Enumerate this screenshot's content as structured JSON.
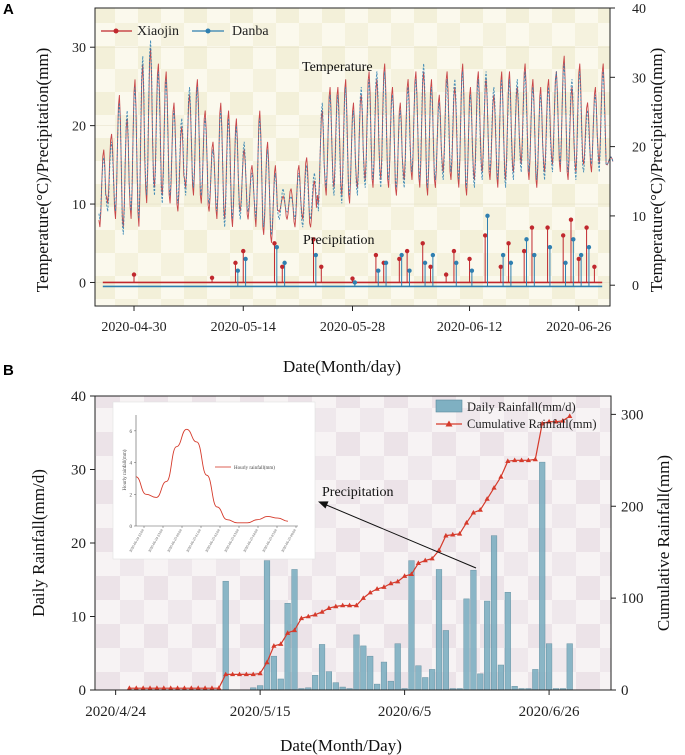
{
  "chart_data": [
    {
      "panel_label": "A",
      "type": "line",
      "title": "",
      "xlabel": "Date(Month/day)",
      "ylabel_left": "Temperature(°C)/Precipitation(mm)",
      "ylabel_right": "Temperature(°C)/Precipitation(mm)",
      "x_start": "2020-04-25",
      "x_end": "2020-06-30",
      "xtick_labels": [
        {
          "label": "2020-04-30",
          "day": 5
        },
        {
          "label": "2020-05-14",
          "day": 19
        },
        {
          "label": "2020-05-28",
          "day": 33
        },
        {
          "label": "2020-06-12",
          "day": 48
        },
        {
          "label": "2020-06-26",
          "day": 62
        }
      ],
      "ylim_left": [
        -3,
        35
      ],
      "yticks_left": [
        "0",
        "10",
        "20",
        "30"
      ],
      "ylim_right": [
        -3,
        40
      ],
      "yticks_right": [
        "0",
        "10",
        "20",
        "30",
        "40"
      ],
      "annotations": [
        "Temperature",
        "Precipitation"
      ],
      "legend_position": "top-left",
      "colors": {
        "Xiaojin": "#c0282e",
        "Danba": "#2f7fb0"
      },
      "series": [
        {
          "name": "Xiaojin",
          "quantity": "temperature",
          "daily_max": [
            17,
            19,
            24,
            21,
            26,
            28,
            30,
            28,
            27,
            23,
            20,
            24,
            26,
            22,
            18,
            23,
            22,
            21,
            17,
            15,
            22,
            18,
            15,
            11,
            12,
            15,
            16,
            13,
            22,
            25,
            25,
            26,
            23,
            24,
            27,
            26,
            28,
            25,
            23,
            26,
            27,
            27,
            26,
            24,
            27,
            25,
            28,
            25,
            27,
            26,
            24,
            27,
            27,
            25,
            28,
            26,
            25,
            26,
            27,
            29,
            25,
            28,
            23,
            25,
            28,
            16
          ],
          "daily_min": [
            7,
            10,
            8,
            7,
            8,
            7,
            10,
            12,
            11,
            10,
            9,
            12,
            11,
            10,
            9,
            8,
            8,
            7,
            9,
            8,
            7,
            6,
            5,
            9,
            8,
            7,
            8,
            7,
            10,
            11,
            12,
            11,
            10,
            12,
            13,
            12,
            13,
            12,
            11,
            13,
            13,
            12,
            11,
            12,
            14,
            13,
            12,
            11,
            13,
            14,
            13,
            12,
            13,
            14,
            15,
            13,
            12,
            14,
            15,
            14,
            13,
            14,
            15,
            14,
            15,
            15
          ]
        },
        {
          "name": "Danba",
          "quantity": "temperature",
          "daily_max": [
            16,
            18,
            23,
            22,
            25,
            29,
            31,
            27,
            26,
            22,
            21,
            25,
            25,
            21,
            17,
            22,
            21,
            20,
            18,
            14,
            21,
            17,
            14,
            12,
            11,
            14,
            15,
            14,
            23,
            24,
            24,
            25,
            22,
            25,
            26,
            27,
            27,
            24,
            22,
            25,
            26,
            28,
            25,
            23,
            26,
            26,
            27,
            24,
            26,
            27,
            25,
            26,
            26,
            26,
            27,
            25,
            24,
            25,
            27,
            28,
            26,
            27,
            22,
            24,
            27,
            16
          ],
          "daily_min": [
            8,
            9,
            9,
            6,
            9,
            8,
            11,
            11,
            10,
            11,
            10,
            11,
            12,
            11,
            10,
            9,
            7,
            8,
            8,
            9,
            8,
            7,
            6,
            8,
            9,
            8,
            7,
            8,
            9,
            12,
            11,
            10,
            11,
            11,
            12,
            13,
            12,
            13,
            12,
            12,
            14,
            13,
            12,
            13,
            13,
            14,
            13,
            12,
            12,
            13,
            14,
            13,
            12,
            13,
            14,
            14,
            13,
            13,
            14,
            15,
            14,
            13,
            14,
            15,
            14,
            15
          ]
        },
        {
          "name": "Xiaojin",
          "quantity": "precipitation",
          "events": [
            [
              5,
              1
            ],
            [
              15,
              0.6
            ],
            [
              18,
              2.5
            ],
            [
              19,
              4
            ],
            [
              23,
              5
            ],
            [
              24,
              2
            ],
            [
              28,
              5.5
            ],
            [
              29,
              2
            ],
            [
              33,
              0.5
            ],
            [
              36,
              3.5
            ],
            [
              37,
              2.5
            ],
            [
              39,
              3
            ],
            [
              40,
              4
            ],
            [
              42,
              5
            ],
            [
              43,
              2
            ],
            [
              45,
              1
            ],
            [
              46,
              4
            ],
            [
              48,
              3
            ],
            [
              50,
              6
            ],
            [
              52,
              2
            ],
            [
              53,
              5
            ],
            [
              55,
              4
            ],
            [
              56,
              7
            ],
            [
              58,
              7
            ],
            [
              60,
              6
            ],
            [
              61,
              8
            ],
            [
              62,
              3
            ],
            [
              63,
              7
            ],
            [
              64,
              2
            ]
          ]
        },
        {
          "name": "Danba",
          "quantity": "precipitation",
          "events": [
            [
              18,
              2
            ],
            [
              19,
              3.5
            ],
            [
              23,
              5
            ],
            [
              24,
              3
            ],
            [
              28,
              4
            ],
            [
              33,
              0.5
            ],
            [
              36,
              2
            ],
            [
              37,
              3
            ],
            [
              39,
              4
            ],
            [
              40,
              2
            ],
            [
              42,
              3
            ],
            [
              43,
              4
            ],
            [
              46,
              3
            ],
            [
              48,
              2
            ],
            [
              50,
              9
            ],
            [
              52,
              4
            ],
            [
              53,
              3
            ],
            [
              55,
              6
            ],
            [
              56,
              4
            ],
            [
              58,
              5
            ],
            [
              60,
              3
            ],
            [
              61,
              6
            ],
            [
              62,
              4
            ],
            [
              63,
              5
            ]
          ]
        }
      ]
    },
    {
      "panel_label": "B",
      "type": "bar",
      "xlabel": "Date(Month/Day)",
      "ylabel_left": "Daily Rainfall(mm/d)",
      "ylabel_right": "Cumulative Rainfall(mm)",
      "x_start": "2020-04-21",
      "xtick_labels": [
        {
          "label": "2020/4/24",
          "day": 3
        },
        {
          "label": "2020/5/15",
          "day": 24
        },
        {
          "label": "2020/6/5",
          "day": 45
        },
        {
          "label": "2020/6/26",
          "day": 66
        }
      ],
      "xlim_days": [
        0,
        75
      ],
      "ylim_left": [
        0,
        40
      ],
      "yticks_left": [
        "0",
        "10",
        "20",
        "30",
        "40"
      ],
      "ylim_right": [
        0,
        320
      ],
      "yticks_right": [
        "0",
        "100",
        "200",
        "300"
      ],
      "annotation": "Precipitation",
      "legend_position": "top-right",
      "colors": {
        "bars": "#7fb0c2",
        "cumulative": "#d53a2b"
      },
      "series": [
        {
          "name": "Daily Rainfall(mm/d)",
          "type": "bar",
          "days": [
            19,
            23,
            24,
            25,
            26,
            27,
            28,
            29,
            30,
            31,
            32,
            33,
            34,
            35,
            36,
            37,
            38,
            39,
            40,
            41,
            42,
            43,
            44,
            45,
            46,
            47,
            48,
            49,
            50,
            51,
            52,
            53,
            54,
            55,
            56,
            57,
            58,
            59,
            60,
            61,
            62,
            63,
            64,
            65,
            66,
            67,
            68,
            69
          ],
          "values": [
            14.8,
            0.3,
            0.6,
            17.6,
            4.6,
            1.5,
            11.8,
            16.4,
            0.2,
            0.3,
            2,
            6.2,
            2.5,
            1,
            0.4,
            0.2,
            7.5,
            6,
            4.6,
            0.8,
            3.8,
            1.2,
            6.3,
            0.2,
            17.6,
            3.3,
            1.7,
            2.8,
            16.4,
            8.1,
            0.2,
            0.2,
            12.4,
            16.3,
            2.2,
            12.1,
            21,
            3.4,
            13.3,
            0.5,
            0.2,
            0.2,
            2.8,
            31,
            6.3,
            0.2,
            0.2,
            6.3
          ]
        },
        {
          "name": "Cumulative Rainfall(mm)",
          "type": "line",
          "days": [
            5,
            6,
            7,
            8,
            9,
            10,
            11,
            12,
            13,
            14,
            15,
            16,
            17,
            18,
            19,
            20,
            21,
            22,
            23,
            24,
            25,
            26,
            27,
            28,
            29,
            30,
            31,
            32,
            33,
            34,
            35,
            36,
            37,
            38,
            39,
            40,
            41,
            42,
            43,
            44,
            45,
            46,
            47,
            48,
            49,
            50,
            51,
            52,
            53,
            54,
            55,
            56,
            57,
            58,
            59,
            60,
            61,
            62,
            63,
            64,
            65,
            66,
            67,
            68,
            69
          ],
          "values": [
            2,
            2,
            2,
            2,
            2,
            2,
            2,
            2,
            2,
            2,
            2,
            2,
            2,
            2,
            17,
            17,
            17,
            17,
            17,
            18,
            30,
            48,
            50,
            62,
            65,
            78,
            80,
            82,
            85,
            89,
            91,
            92,
            92,
            92,
            100,
            106,
            110,
            112,
            116,
            118,
            124,
            126,
            138,
            141,
            143,
            152,
            168,
            169,
            170,
            182,
            193,
            196,
            208,
            220,
            232,
            249,
            250,
            250,
            250,
            251,
            290,
            292,
            292,
            293,
            298
          ]
        }
      ],
      "inset": {
        "type": "line",
        "ylabel": "Hourly rainfall(mm)",
        "yticks": [
          "0",
          "2",
          "4",
          "6"
        ],
        "xtick_labels": [
          "2020-06-24 22:00",
          "2020-06-24 23:00",
          "2020-06-25 00:00",
          "2020-06-25 01:00",
          "2020-06-25 02:00",
          "2020-06-25 03:00",
          "2020-06-25 04:00",
          "2020-06-25 05:00",
          "2020-06-25 06:00"
        ],
        "legend": "Hourly rainfall(mm)",
        "x": [
          0,
          0.5,
          1,
          1.5,
          2,
          2.5,
          3,
          3.5,
          4,
          4.5,
          5,
          5.5,
          6,
          6.5,
          7,
          7.5
        ],
        "values": [
          3.1,
          2.0,
          1.8,
          2.8,
          5.0,
          6.1,
          5.3,
          3.2,
          1.2,
          0.4,
          0.2,
          0.2,
          0.4,
          0.6,
          0.5,
          0.3
        ]
      }
    }
  ]
}
